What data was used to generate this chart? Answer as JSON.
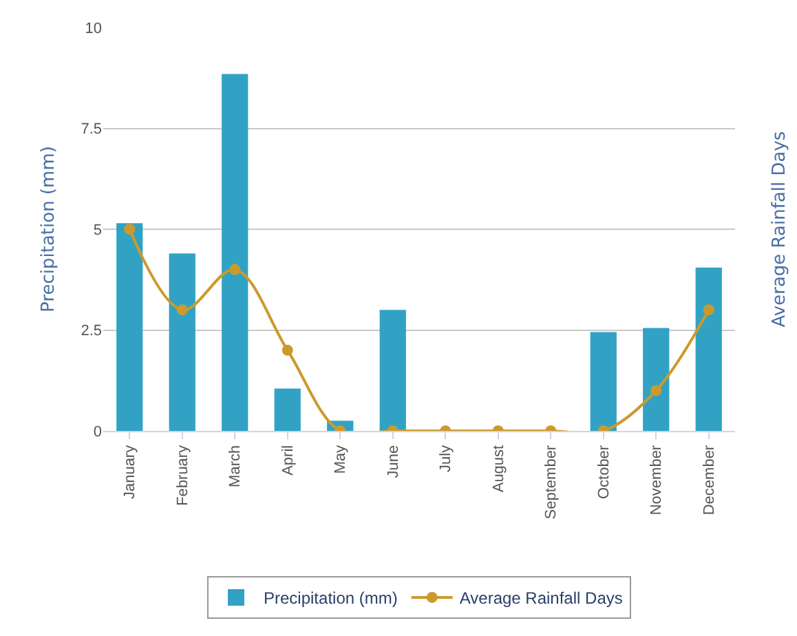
{
  "chart_data": {
    "type": "bar",
    "ylabel": "Precipitation (mm)",
    "y2label": "Average Rainfall Days",
    "categories": [
      "January",
      "February",
      "March",
      "April",
      "May",
      "June",
      "July",
      "August",
      "September",
      "October",
      "November",
      "December"
    ],
    "series": [
      {
        "name": "Precipitation (mm)",
        "color": "#32a2c4",
        "values": [
          5.15,
          4.4,
          8.85,
          1.05,
          0.25,
          3.0,
          0,
          0,
          0,
          2.45,
          2.55,
          4.05
        ]
      },
      {
        "name": "Average Rainfall Days",
        "type": "line",
        "color": "#cc9a2c",
        "marker": "circle",
        "values": [
          5,
          3,
          4,
          2,
          0,
          0,
          0,
          0,
          0,
          0,
          1,
          3
        ]
      }
    ],
    "ylim": [
      0,
      10
    ],
    "yticks": [
      0,
      2.5,
      5,
      7.5,
      10
    ],
    "grid": "y",
    "legend": "bottom"
  }
}
